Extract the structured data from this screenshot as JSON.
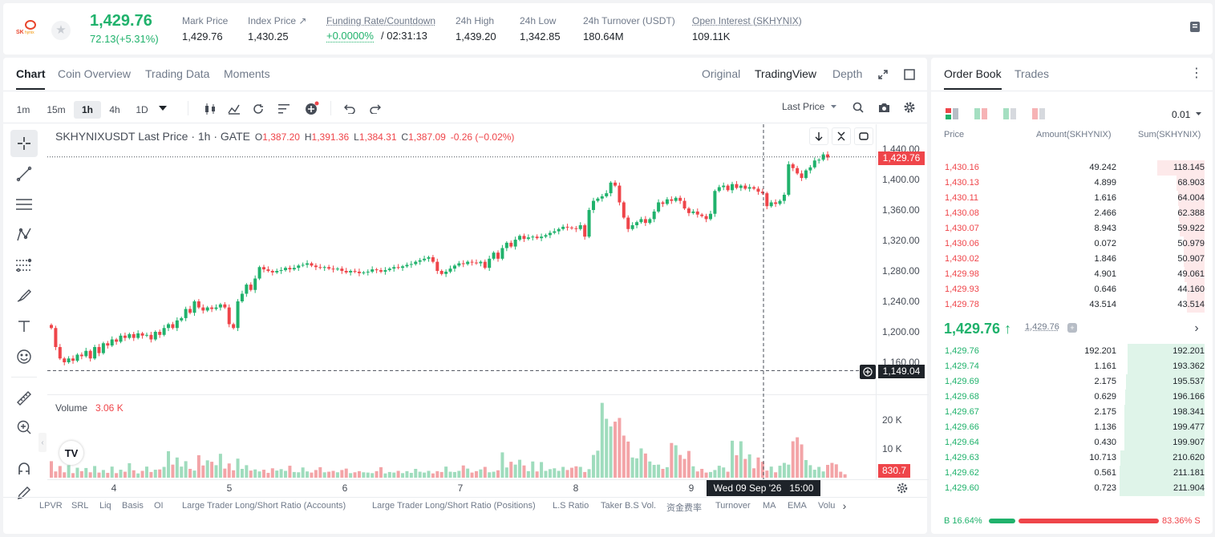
{
  "ticker": {
    "logo_text": "SK hynix",
    "price": "1,429.76",
    "change": "72.13(+5.31%)",
    "stats": [
      {
        "label": "Mark Price",
        "value": "1,429.76"
      },
      {
        "label": "Index Price ↗",
        "value": "1,430.25"
      },
      {
        "label": "Funding Rate/Countdown",
        "value": "+0.0000%",
        "value2": "/ 02:31:13"
      },
      {
        "label": "24h High",
        "value": "1,439.20"
      },
      {
        "label": "24h Low",
        "value": "1,342.85"
      },
      {
        "label": "24h Turnover (USDT)",
        "value": "180.64M"
      },
      {
        "label": "Open Interest (SKHYNIX)",
        "value": "109.11K"
      }
    ]
  },
  "chart_tabs": [
    "Chart",
    "Coin Overview",
    "Trading Data",
    "Moments"
  ],
  "view_tabs": [
    "Original",
    "TradingView",
    "Depth"
  ],
  "intervals": [
    "1m",
    "15m",
    "1h",
    "4h",
    "1D"
  ],
  "last_price_select": "Last Price",
  "legend": {
    "symbol": "SKHYNIXUSDT Last Price · 1h · GATE",
    "o_label": "O",
    "o": "1,387.20",
    "h_label": "H",
    "h": "1,391.36",
    "l_label": "L",
    "l": "1,384.31",
    "c_label": "C",
    "c": "1,387.09",
    "chg": "-0.26 (−0.02%)"
  },
  "volume": {
    "label": "Volume",
    "value": "3.06 K",
    "last": "830.7"
  },
  "price_axis": [
    "1,440.00",
    "1,400.00",
    "1,360.00",
    "1,320.00",
    "1,280.00",
    "1,240.00",
    "1,200.00",
    "1,160.00"
  ],
  "price_tag": "1,429.76",
  "cross_price": "1,149.04",
  "vol_axis": [
    "20 K",
    "10 K"
  ],
  "time_axis": [
    "4",
    "5",
    "6",
    "7",
    "8",
    "9"
  ],
  "cross_time": "Wed 09 Sep '26   15:00",
  "indicators": [
    "LPVR",
    "SRL",
    "Liq",
    "Basis",
    "OI",
    "Large Trader Long/Short Ratio (Accounts)",
    "Large Trader Long/Short Ratio (Positions)",
    "L.S Ratio",
    "Taker B.S Vol.",
    "资金费率",
    "Turnover",
    "MA",
    "EMA",
    "Volu"
  ],
  "orderbook": {
    "tabs": [
      "Order Book",
      "Trades"
    ],
    "precision": "0.01",
    "headers": [
      "Price",
      "Amount(SKHYNIX)",
      "Sum(SKHYNIX)"
    ],
    "asks": [
      {
        "price": "1,430.16",
        "amount": "49.242",
        "sum": "118.145",
        "depth": 0.56
      },
      {
        "price": "1,430.13",
        "amount": "4.899",
        "sum": "68.903",
        "depth": 0.33
      },
      {
        "price": "1,430.11",
        "amount": "1.616",
        "sum": "64.004",
        "depth": 0.31
      },
      {
        "price": "1,430.08",
        "amount": "2.466",
        "sum": "62.388",
        "depth": 0.3
      },
      {
        "price": "1,430.07",
        "amount": "8.943",
        "sum": "59.922",
        "depth": 0.29
      },
      {
        "price": "1,430.06",
        "amount": "0.072",
        "sum": "50.979",
        "depth": 0.25
      },
      {
        "price": "1,430.02",
        "amount": "1.846",
        "sum": "50.907",
        "depth": 0.25
      },
      {
        "price": "1,429.98",
        "amount": "4.901",
        "sum": "49.061",
        "depth": 0.24
      },
      {
        "price": "1,429.93",
        "amount": "0.646",
        "sum": "44.160",
        "depth": 0.21
      },
      {
        "price": "1,429.78",
        "amount": "43.514",
        "sum": "43.514",
        "depth": 0.21
      }
    ],
    "mid_price": "1,429.76 ↑",
    "mid_mark": "1,429.76",
    "bids": [
      {
        "price": "1,429.76",
        "amount": "192.201",
        "sum": "192.201",
        "depth": 0.91
      },
      {
        "price": "1,429.74",
        "amount": "1.161",
        "sum": "193.362",
        "depth": 0.91
      },
      {
        "price": "1,429.69",
        "amount": "2.175",
        "sum": "195.537",
        "depth": 0.92
      },
      {
        "price": "1,429.68",
        "amount": "0.629",
        "sum": "196.166",
        "depth": 0.93
      },
      {
        "price": "1,429.67",
        "amount": "2.175",
        "sum": "198.341",
        "depth": 0.94
      },
      {
        "price": "1,429.66",
        "amount": "1.136",
        "sum": "199.477",
        "depth": 0.94
      },
      {
        "price": "1,429.64",
        "amount": "0.430",
        "sum": "199.907",
        "depth": 0.94
      },
      {
        "price": "1,429.63",
        "amount": "10.713",
        "sum": "210.620",
        "depth": 0.99
      },
      {
        "price": "1,429.62",
        "amount": "0.561",
        "sum": "211.181",
        "depth": 1.0
      },
      {
        "price": "1,429.60",
        "amount": "0.723",
        "sum": "211.904",
        "depth": 1.0
      }
    ],
    "ratio": {
      "buy": "B 16.64%",
      "sell": "83.36% S",
      "buy_pct": 16.64
    }
  },
  "colors": {
    "up": "#20b26c",
    "down": "#ef454a"
  },
  "chart_data": {
    "type": "candlestick",
    "title": "",
    "xlabel": "",
    "ylabel": "",
    "ylim": [
      1145,
      1445
    ],
    "x_ticks": [
      "4",
      "5",
      "6",
      "7",
      "8",
      "9"
    ],
    "closes": [
      1205,
      1180,
      1165,
      1160,
      1165,
      1162,
      1170,
      1168,
      1175,
      1165,
      1180,
      1172,
      1185,
      1182,
      1190,
      1187,
      1195,
      1192,
      1197,
      1192,
      1198,
      1195,
      1196,
      1190,
      1200,
      1196,
      1205,
      1210,
      1205,
      1215,
      1218,
      1230,
      1225,
      1240,
      1232,
      1228,
      1232,
      1230,
      1232,
      1236,
      1232,
      1210,
      1205,
      1240,
      1250,
      1262,
      1255,
      1270,
      1285,
      1282,
      1280,
      1278,
      1280,
      1281,
      1284,
      1282,
      1284,
      1287,
      1288,
      1290,
      1287,
      1285,
      1284,
      1285,
      1283,
      1282,
      1283,
      1280,
      1278,
      1280,
      1279,
      1277,
      1278,
      1279,
      1282,
      1281,
      1279,
      1281,
      1283,
      1285,
      1284,
      1286,
      1288,
      1289,
      1292,
      1294,
      1296,
      1298,
      1292,
      1280,
      1276,
      1279,
      1283,
      1287,
      1290,
      1289,
      1292,
      1291,
      1290,
      1292,
      1284,
      1296,
      1304,
      1296,
      1310,
      1317,
      1312,
      1321,
      1326,
      1322,
      1324,
      1325,
      1323,
      1325,
      1327,
      1330,
      1332,
      1335,
      1338,
      1337,
      1336,
      1335,
      1340,
      1325,
      1360,
      1372,
      1375,
      1378,
      1382,
      1396,
      1392,
      1370,
      1350,
      1335,
      1340,
      1344,
      1348,
      1343,
      1348,
      1358,
      1370,
      1368,
      1374,
      1372,
      1376,
      1372,
      1362,
      1356,
      1358,
      1354,
      1352,
      1348,
      1355,
      1385,
      1390,
      1392,
      1386,
      1394,
      1389,
      1392,
      1388,
      1390,
      1388,
      1384,
      1382,
      1365,
      1370,
      1368,
      1372,
      1380,
      1420,
      1415,
      1408,
      1402,
      1412,
      1416,
      1425,
      1426,
      1433,
      1429
    ],
    "volumes": [
      5.8,
      2.2,
      4.1,
      1.9,
      4.4,
      1.6,
      3.5,
      2.3,
      3.4,
      1.9,
      4.1,
      1.8,
      2.7,
      1.7,
      3.9,
      1.6,
      2.8,
      2.1,
      5.1,
      2.6,
      1.5,
      2.4,
      3.9,
      2.0,
      2.8,
      2.9,
      3.8,
      9.3,
      4.6,
      7.1,
      3.9,
      5.8,
      3.1,
      2.5,
      7.9,
      4.3,
      6.1,
      5.6,
      4.4,
      8.4,
      3.2,
      5.0,
      2.6,
      6.7,
      3.1,
      4.4,
      2.5,
      2.9,
      2.2,
      2.8,
      1.7,
      3.3,
      2.5,
      3.0,
      2.4,
      4.2,
      2.0,
      1.9,
      3.6,
      2.2,
      1.8,
      2.7,
      3.7,
      1.9,
      2.1,
      2.4,
      1.9,
      2.7,
      3.2,
      1.6,
      1.9,
      2.3,
      1.9,
      1.8,
      1.6,
      2.3,
      3.7,
      1.5,
      2.0,
      1.8,
      2.4,
      1.6,
      2.3,
      1.7,
      3.1,
      2.1,
      1.8,
      2.4,
      1.5,
      2.3,
      2.0,
      3.9,
      2.1,
      2.0,
      2.4,
      4.3,
      3.2,
      1.8,
      2.3,
      2.9,
      3.8,
      1.9,
      2.1,
      2.6,
      8.9,
      3.6,
      5.6,
      4.6,
      6.3,
      4.3,
      2.3,
      5.7,
      2.2,
      5.5,
      2.4,
      3.0,
      3.3,
      2.4,
      3.8,
      2.7,
      3.5,
      4.0,
      3.8,
      2.0,
      3.0,
      8.0,
      9.5,
      26.3,
      20.7,
      18.0,
      19.7,
      21.0,
      14.8,
      12.7,
      7.1,
      6.8,
      10.3,
      8.5,
      5.7,
      4.5,
      4.6,
      3.1,
      3.7,
      12.2,
      11.4,
      8.0,
      6.6,
      9.4,
      4.0,
      2.2,
      3.1,
      1.8,
      2.0,
      2.7,
      4.2,
      3.6,
      2.1,
      13.0,
      7.9,
      12.8,
      6.6,
      8.2,
      3.3,
      7.1,
      5.6,
      2.5,
      3.9,
      1.9,
      4.2,
      5.2,
      4.6,
      12.8,
      14.2,
      11.7,
      6.2,
      4.4,
      2.8,
      3.8,
      2.2,
      4.5,
      5.2,
      4.7,
      2.1,
      1.2
    ]
  }
}
